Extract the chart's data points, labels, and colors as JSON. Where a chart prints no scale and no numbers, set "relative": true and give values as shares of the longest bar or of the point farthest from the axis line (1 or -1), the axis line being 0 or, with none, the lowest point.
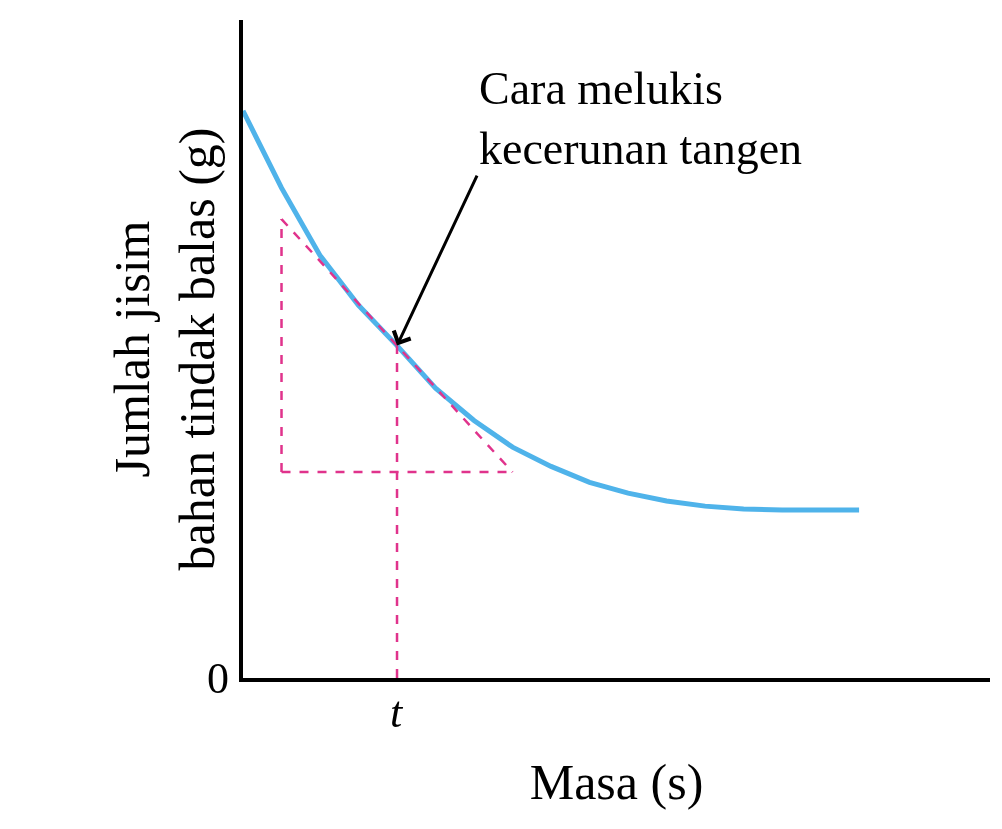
{
  "chart_data": {
    "type": "line",
    "relative": true,
    "xlabel": "Masa (s)",
    "ylabel": "Jumlah jisim\nbahan tindak balas (g)",
    "categories": [
      null,
      null,
      null,
      null,
      null,
      null,
      null,
      null,
      null,
      null,
      null,
      null,
      null,
      null,
      null,
      null,
      null,
      null,
      null,
      null
    ],
    "marker": "none",
    "series": [
      {
        "color": "#4fb3ea",
        "line_style": "solid",
        "values": [
          1.0,
          0.864,
          0.745,
          0.657,
          0.586,
          0.511,
          0.454,
          0.407,
          0.373,
          0.345,
          0.326,
          0.312,
          0.303,
          0.298,
          0.296,
          0.296,
          0.296,
          null,
          null,
          null
        ]
      },
      {
        "color": "#e0338c",
        "line_style": "dashed",
        "values": [
          null,
          0.809,
          0.735,
          0.66,
          0.586,
          0.512,
          0.437,
          0.363,
          null,
          null,
          null,
          null,
          null,
          null,
          null,
          null,
          null,
          null,
          null,
          null
        ]
      },
      {
        "color": "#e0338c",
        "line_style": "dashed",
        "values": [
          null,
          0.363,
          0.363,
          0.363,
          0.363,
          0.363,
          0.363,
          0.363,
          null,
          null,
          null,
          null,
          null,
          null,
          null,
          null,
          null,
          null,
          null,
          null
        ]
      }
    ],
    "annotations": [
      "Cara melukis\nkecerunan tangen",
      "0",
      "t"
    ]
  }
}
